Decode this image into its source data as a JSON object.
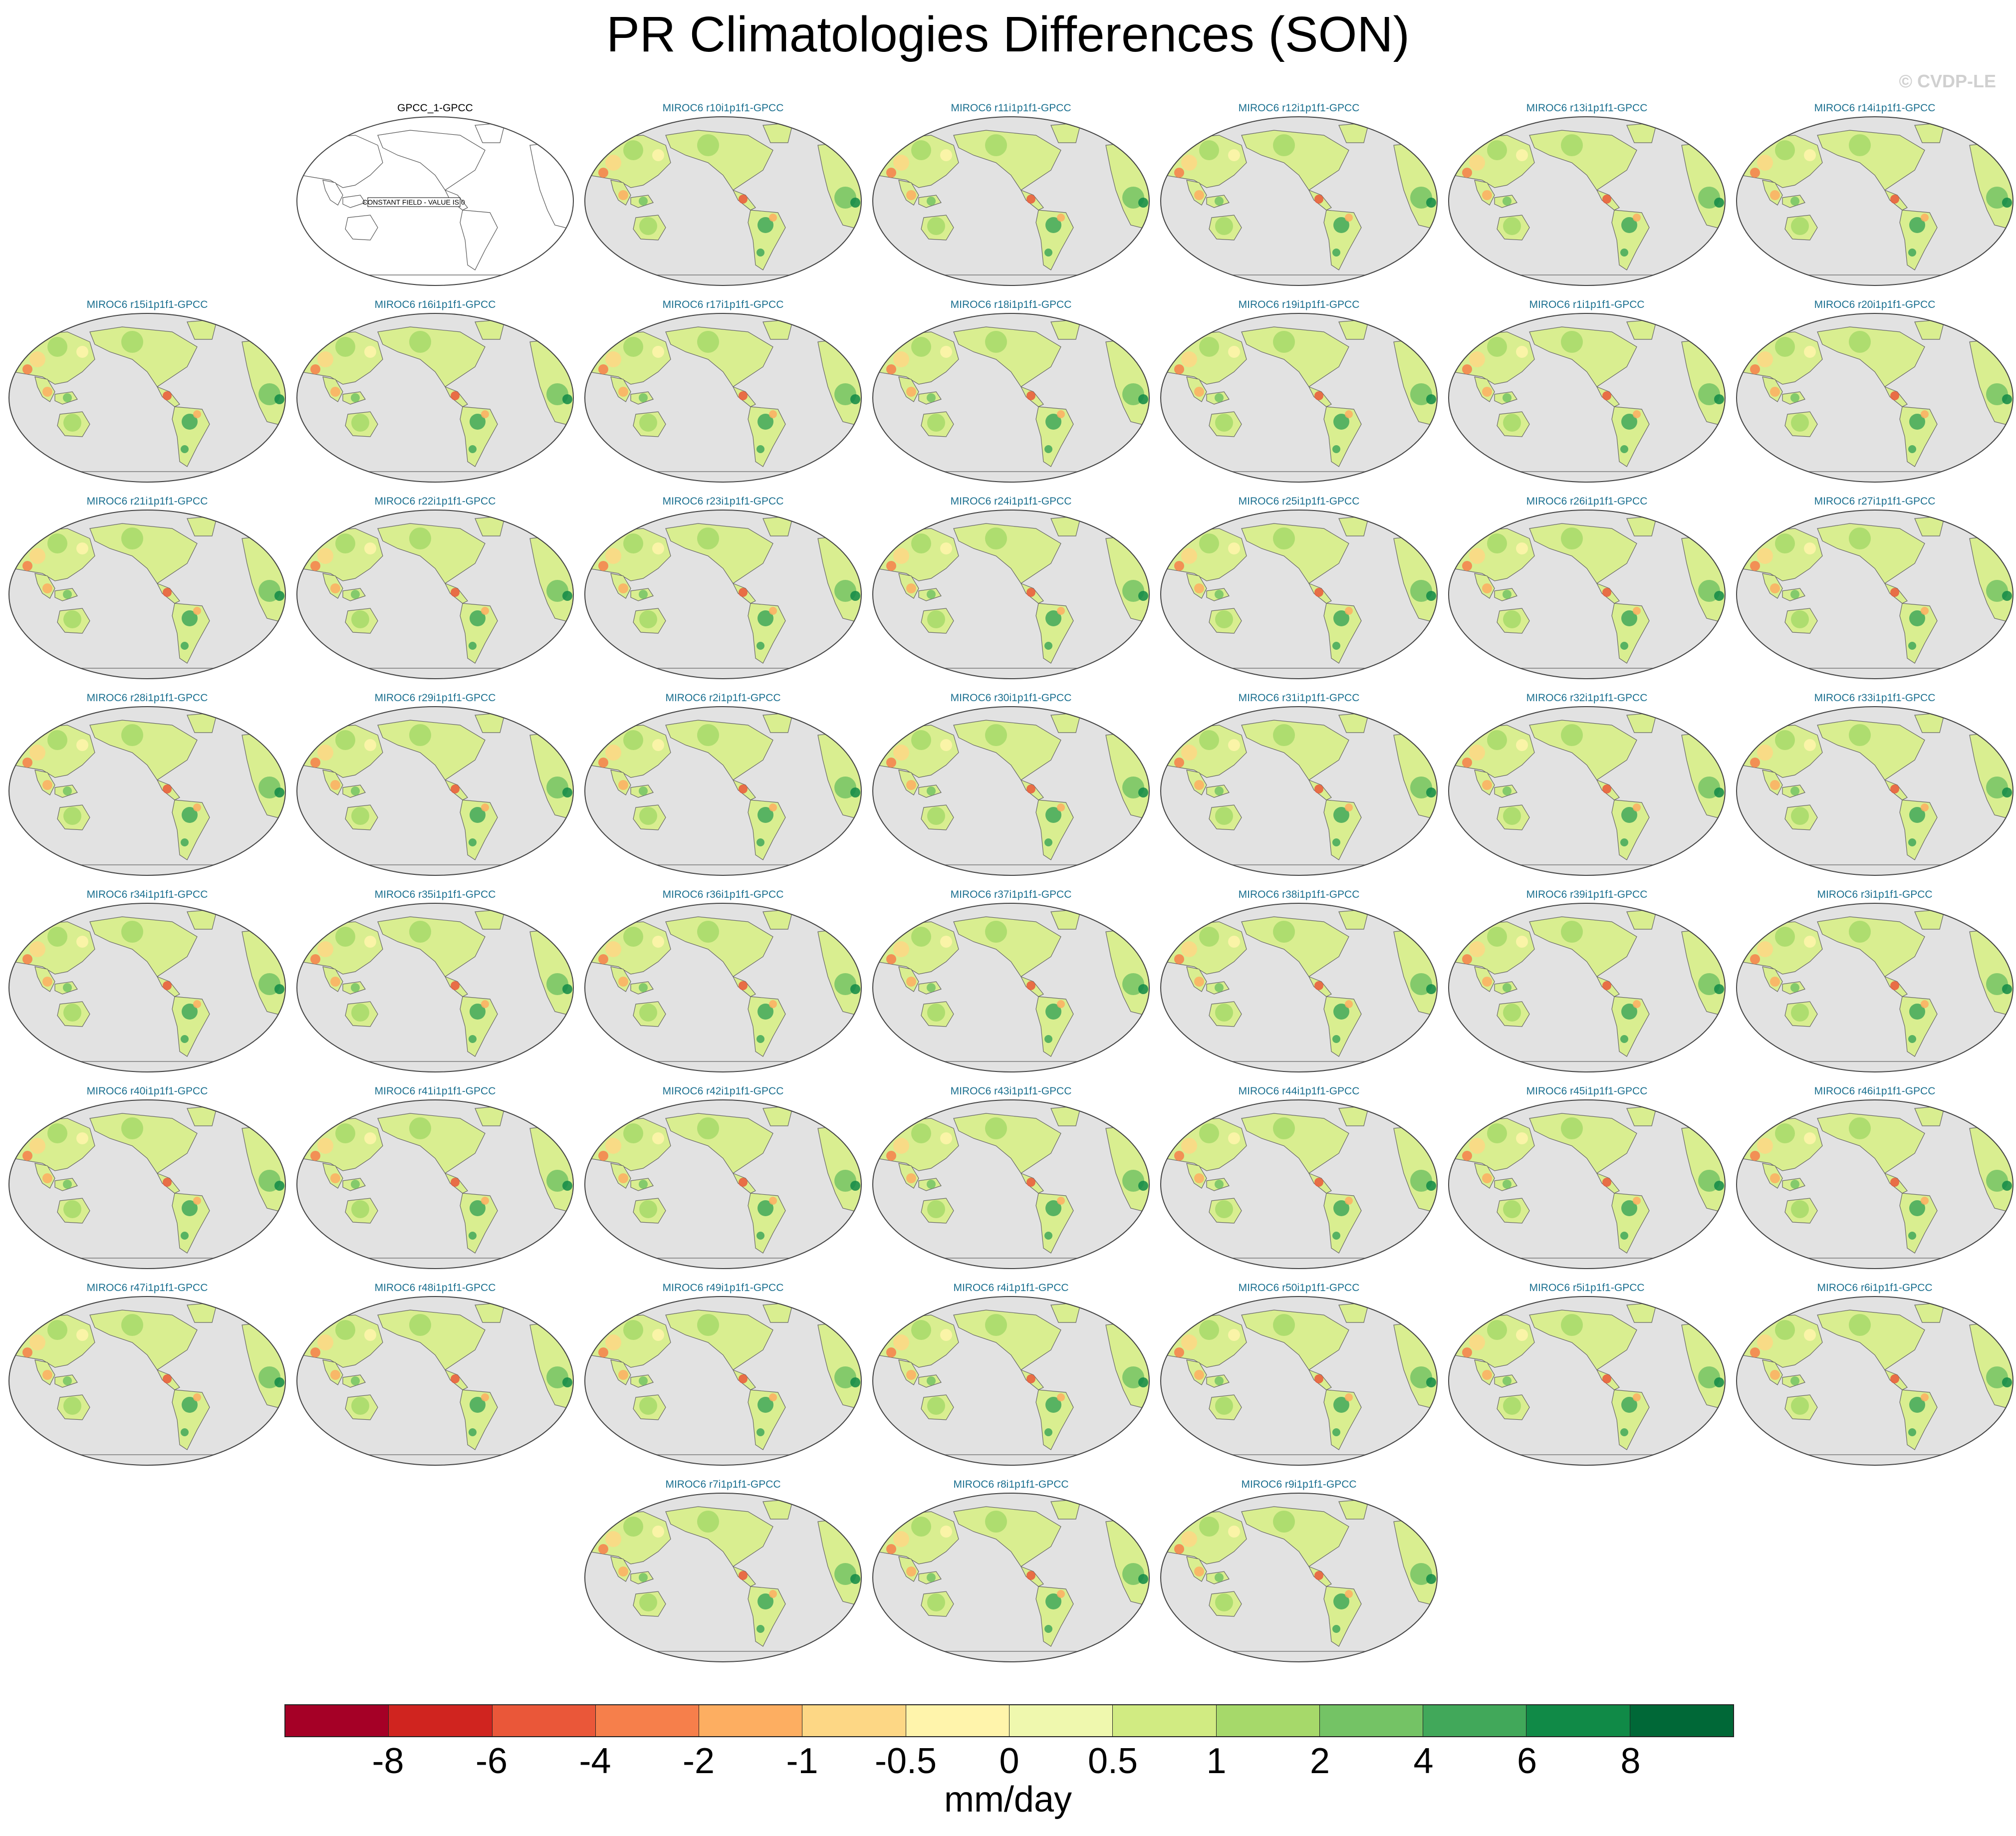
{
  "title": "PR Climatologies Differences (SON)",
  "watermark": "© CVDP-LE",
  "constant_field_note": "CONSTANT FIELD - VALUE IS 0",
  "panels": [
    "GPCC_1-GPCC",
    "MIROC6 r10i1p1f1-GPCC",
    "MIROC6 r11i1p1f1-GPCC",
    "MIROC6 r12i1p1f1-GPCC",
    "MIROC6 r13i1p1f1-GPCC",
    "MIROC6 r14i1p1f1-GPCC",
    "MIROC6 r15i1p1f1-GPCC",
    "MIROC6 r16i1p1f1-GPCC",
    "MIROC6 r17i1p1f1-GPCC",
    "MIROC6 r18i1p1f1-GPCC",
    "MIROC6 r19i1p1f1-GPCC",
    "MIROC6 r1i1p1f1-GPCC",
    "MIROC6 r20i1p1f1-GPCC",
    "MIROC6 r21i1p1f1-GPCC",
    "MIROC6 r22i1p1f1-GPCC",
    "MIROC6 r23i1p1f1-GPCC",
    "MIROC6 r24i1p1f1-GPCC",
    "MIROC6 r25i1p1f1-GPCC",
    "MIROC6 r26i1p1f1-GPCC",
    "MIROC6 r27i1p1f1-GPCC",
    "MIROC6 r28i1p1f1-GPCC",
    "MIROC6 r29i1p1f1-GPCC",
    "MIROC6 r2i1p1f1-GPCC",
    "MIROC6 r30i1p1f1-GPCC",
    "MIROC6 r31i1p1f1-GPCC",
    "MIROC6 r32i1p1f1-GPCC",
    "MIROC6 r33i1p1f1-GPCC",
    "MIROC6 r34i1p1f1-GPCC",
    "MIROC6 r35i1p1f1-GPCC",
    "MIROC6 r36i1p1f1-GPCC",
    "MIROC6 r37i1p1f1-GPCC",
    "MIROC6 r38i1p1f1-GPCC",
    "MIROC6 r39i1p1f1-GPCC",
    "MIROC6 r3i1p1f1-GPCC",
    "MIROC6 r40i1p1f1-GPCC",
    "MIROC6 r41i1p1f1-GPCC",
    "MIROC6 r42i1p1f1-GPCC",
    "MIROC6 r43i1p1f1-GPCC",
    "MIROC6 r44i1p1f1-GPCC",
    "MIROC6 r45i1p1f1-GPCC",
    "MIROC6 r46i1p1f1-GPCC",
    "MIROC6 r47i1p1f1-GPCC",
    "MIROC6 r48i1p1f1-GPCC",
    "MIROC6 r49i1p1f1-GPCC",
    "MIROC6 r4i1p1f1-GPCC",
    "MIROC6 r50i1p1f1-GPCC",
    "MIROC6 r5i1p1f1-GPCC",
    "MIROC6 r6i1p1f1-GPCC",
    "MIROC6 r7i1p1f1-GPCC",
    "MIROC6 r8i1p1f1-GPCC",
    "MIROC6 r9i1p1f1-GPCC"
  ],
  "colorbar": {
    "colors": [
      "#a50026",
      "#d0241f",
      "#ea5739",
      "#f67f4b",
      "#fdae61",
      "#fdd785",
      "#fff4ab",
      "#eff8ae",
      "#d1eb82",
      "#a6d96a",
      "#74c365",
      "#41a85a",
      "#108a47",
      "#006837"
    ],
    "tick_labels": [
      "-8",
      "-6",
      "-4",
      "-2",
      "-1",
      "-0.5",
      "0",
      "0.5",
      "1",
      "2",
      "4",
      "6",
      "8"
    ],
    "units": "mm/day"
  }
}
